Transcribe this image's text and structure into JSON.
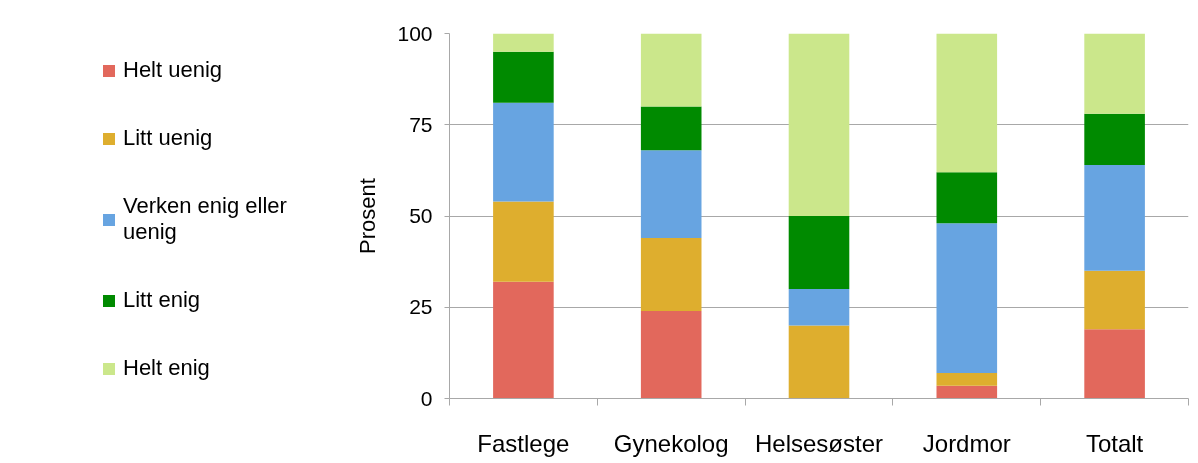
{
  "chart_data": {
    "type": "bar",
    "stacked": true,
    "ylabel": "Prosent",
    "categories": [
      "Fastlege",
      "Gynekolog",
      "Helsesøster",
      "Jordmor",
      "Totalt"
    ],
    "series": [
      {
        "name": "Helt uenig",
        "color": "#e2685c",
        "values": [
          32,
          24,
          0,
          3.5,
          19
        ]
      },
      {
        "name": "Litt uenig",
        "color": "#deae2e",
        "values": [
          22,
          20,
          20,
          3.5,
          16
        ]
      },
      {
        "name": "Verken enig eller uenig",
        "color": "#67a4e1",
        "values": [
          27,
          24,
          10,
          41,
          29
        ]
      },
      {
        "name": "Litt enig",
        "color": "#008a00",
        "values": [
          14,
          12,
          20,
          14,
          14
        ]
      },
      {
        "name": "Helt enig",
        "color": "#cbe78b",
        "values": [
          5,
          20,
          50,
          38,
          22
        ]
      }
    ],
    "ylim": [
      0,
      100
    ],
    "yticks": [
      0,
      25,
      50,
      75,
      100
    ],
    "grid": "y",
    "legend": "left"
  }
}
